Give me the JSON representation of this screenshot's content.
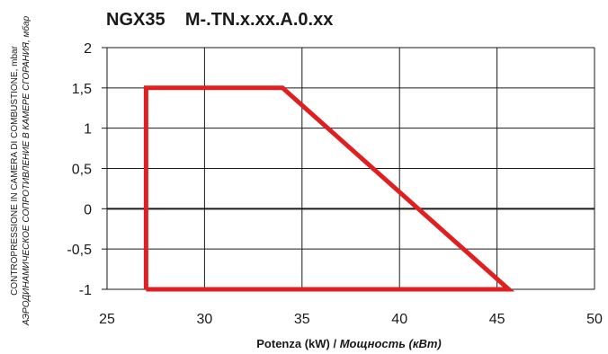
{
  "chart_data": {
    "type": "line",
    "title": "NGX35    M-.TN.x.xx.A.0.xx",
    "xlabel": "Potenza (kW) / ",
    "xlabel_italic": "Мощность (кВт)",
    "ylabel_line1": "CONTROPRESSIONE IN CAMERA DI COMBUSTIONE, mbar",
    "ylabel_line2": "АЭРОДИНАМИЧЕСКОЕ СОПРОТИВЛЕНИЕ В КАМЕРЕ СГОРАНИЯ, мбар",
    "xlim": [
      25,
      50
    ],
    "ylim": [
      -1,
      2
    ],
    "x_ticks": [
      25,
      30,
      35,
      40,
      45,
      50
    ],
    "x_tick_labels": [
      "25",
      "30",
      "35",
      "40",
      "45",
      "50"
    ],
    "y_ticks": [
      2,
      1.5,
      1,
      0.5,
      0,
      -0.5,
      -1
    ],
    "y_tick_labels": [
      "2",
      "1,5",
      "1",
      "0,5",
      "0",
      "-0,5",
      "-1"
    ],
    "grid": true,
    "series": [
      {
        "color": "#e02020",
        "x": [
          27,
          27,
          34,
          45.6,
          27
        ],
        "y": [
          -1,
          1.5,
          1.5,
          -1,
          -1
        ]
      }
    ]
  }
}
